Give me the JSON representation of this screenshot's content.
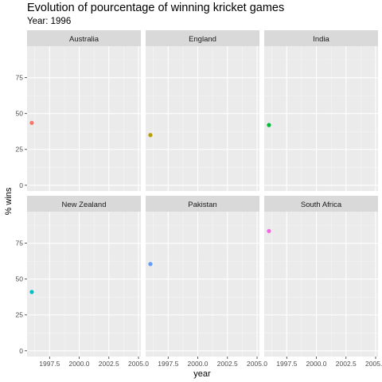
{
  "chart_data": {
    "type": "scatter",
    "title": "Evolution of pourcentage of winning kricket games",
    "subtitle": "Year: 1996",
    "xlabel": "year",
    "ylabel": "% wins",
    "facet_layout": "2 rows x 3 columns",
    "xlim": [
      1995.6,
      2005.2
    ],
    "ylim": [
      -4,
      97
    ],
    "x_ticks": [
      1997.5,
      2000.0,
      2002.5,
      2005.0
    ],
    "x_tick_labels": [
      "1997.5",
      "2000.0",
      "2002.5",
      "2005.0"
    ],
    "y_ticks": [
      0,
      25,
      50,
      75
    ],
    "y_tick_labels": [
      "0",
      "25",
      "50",
      "75"
    ],
    "grid": true,
    "legend": "none",
    "panels": [
      {
        "name": "Australia",
        "x": 1996,
        "y": 43.5,
        "color": "#F8766D"
      },
      {
        "name": "England",
        "x": 1996,
        "y": 35,
        "color": "#B79F00"
      },
      {
        "name": "India",
        "x": 1996,
        "y": 42,
        "color": "#00BA38"
      },
      {
        "name": "New Zealand",
        "x": 1996,
        "y": 41,
        "color": "#00BFC4"
      },
      {
        "name": "Pakistan",
        "x": 1996,
        "y": 60.5,
        "color": "#619CFF"
      },
      {
        "name": "South Africa",
        "x": 1996,
        "y": 83.5,
        "color": "#F564E3"
      }
    ]
  }
}
